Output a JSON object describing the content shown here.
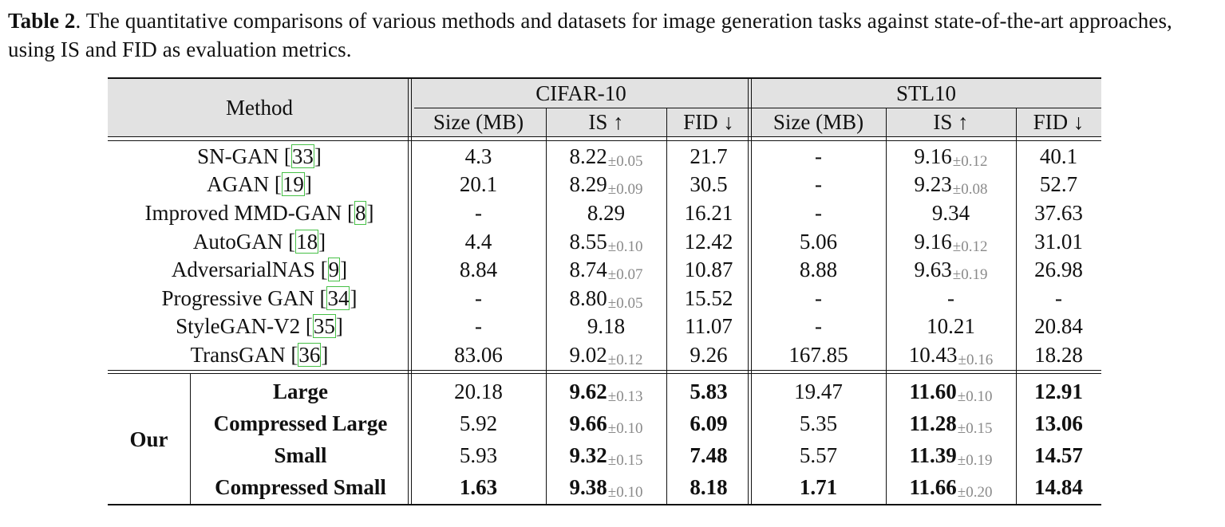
{
  "caption": {
    "label": "Table 2",
    "text": ". The quantitative comparisons of various methods and datasets for image generation tasks against state-of-the-art approaches, using IS and FID as evaluation metrics."
  },
  "table": {
    "method_header": "Method",
    "datasets": [
      "CIFAR-10",
      "STL10"
    ],
    "subheaders": [
      "Size (MB)",
      "IS ↑",
      "FID ↓",
      "Size (MB)",
      "IS ↑",
      "FID ↓"
    ],
    "group_label": "Our",
    "baselines": [
      {
        "name": "SN-GAN",
        "ref": "33",
        "cells": [
          {
            "v": "4.3"
          },
          {
            "v": "8.22",
            "s": "±0.05"
          },
          {
            "v": "21.7"
          },
          {
            "v": "-"
          },
          {
            "v": "9.16",
            "s": "±0.12"
          },
          {
            "v": "40.1"
          }
        ]
      },
      {
        "name": "AGAN",
        "ref": "19",
        "cells": [
          {
            "v": "20.1"
          },
          {
            "v": "8.29",
            "s": "±0.09"
          },
          {
            "v": "30.5"
          },
          {
            "v": "-"
          },
          {
            "v": "9.23",
            "s": "±0.08"
          },
          {
            "v": "52.7"
          }
        ]
      },
      {
        "name": "Improved MMD-GAN",
        "ref": "8",
        "cells": [
          {
            "v": "-"
          },
          {
            "v": "8.29"
          },
          {
            "v": "16.21"
          },
          {
            "v": "-"
          },
          {
            "v": "9.34"
          },
          {
            "v": "37.63"
          }
        ]
      },
      {
        "name": "AutoGAN",
        "ref": "18",
        "cells": [
          {
            "v": "4.4"
          },
          {
            "v": "8.55",
            "s": "±0.10"
          },
          {
            "v": "12.42"
          },
          {
            "v": "5.06"
          },
          {
            "v": "9.16",
            "s": "±0.12"
          },
          {
            "v": "31.01"
          }
        ]
      },
      {
        "name": "AdversarialNAS",
        "ref": "9",
        "cells": [
          {
            "v": "8.84"
          },
          {
            "v": "8.74",
            "s": "±0.07"
          },
          {
            "v": "10.87"
          },
          {
            "v": "8.88"
          },
          {
            "v": "9.63",
            "s": "±0.19"
          },
          {
            "v": "26.98"
          }
        ]
      },
      {
        "name": "Progressive GAN",
        "ref": "34",
        "cells": [
          {
            "v": "-"
          },
          {
            "v": "8.80",
            "s": "±0.05"
          },
          {
            "v": "15.52"
          },
          {
            "v": "-"
          },
          {
            "v": "-"
          },
          {
            "v": "-"
          }
        ]
      },
      {
        "name": "StyleGAN-V2",
        "ref": "35",
        "cells": [
          {
            "v": "-"
          },
          {
            "v": "9.18"
          },
          {
            "v": "11.07"
          },
          {
            "v": "-"
          },
          {
            "v": "10.21"
          },
          {
            "v": "20.84"
          }
        ]
      },
      {
        "name": "TransGAN",
        "ref": "36",
        "cells": [
          {
            "v": "83.06"
          },
          {
            "v": "9.02",
            "s": "±0.12"
          },
          {
            "v": "9.26"
          },
          {
            "v": "167.85"
          },
          {
            "v": "10.43",
            "s": "±0.16"
          },
          {
            "v": "18.28"
          }
        ]
      }
    ],
    "ours": [
      {
        "name": "Large",
        "cells": [
          {
            "v": "20.18"
          },
          {
            "v": "9.62",
            "s": "±0.13",
            "b": true
          },
          {
            "v": "5.83",
            "b": true
          },
          {
            "v": "19.47"
          },
          {
            "v": "11.60",
            "s": "±0.10",
            "b": true
          },
          {
            "v": "12.91",
            "b": true
          }
        ]
      },
      {
        "name": "Compressed Large",
        "cells": [
          {
            "v": "5.92"
          },
          {
            "v": "9.66",
            "s": "±0.10",
            "b": true
          },
          {
            "v": "6.09",
            "b": true
          },
          {
            "v": "5.35"
          },
          {
            "v": "11.28",
            "s": "±0.15",
            "b": true
          },
          {
            "v": "13.06",
            "b": true
          }
        ]
      },
      {
        "name": "Small",
        "cells": [
          {
            "v": "5.93"
          },
          {
            "v": "9.32",
            "s": "±0.15",
            "b": true
          },
          {
            "v": "7.48",
            "b": true
          },
          {
            "v": "5.57"
          },
          {
            "v": "11.39",
            "s": "±0.19",
            "b": true
          },
          {
            "v": "14.57",
            "b": true
          }
        ]
      },
      {
        "name": "Compressed Small",
        "cells": [
          {
            "v": "1.63",
            "b": true
          },
          {
            "v": "9.38",
            "s": "±0.10",
            "b": true
          },
          {
            "v": "8.18",
            "b": true
          },
          {
            "v": "1.71",
            "b": true
          },
          {
            "v": "11.66",
            "s": "±0.20",
            "b": true
          },
          {
            "v": "14.84",
            "b": true
          }
        ]
      }
    ]
  }
}
